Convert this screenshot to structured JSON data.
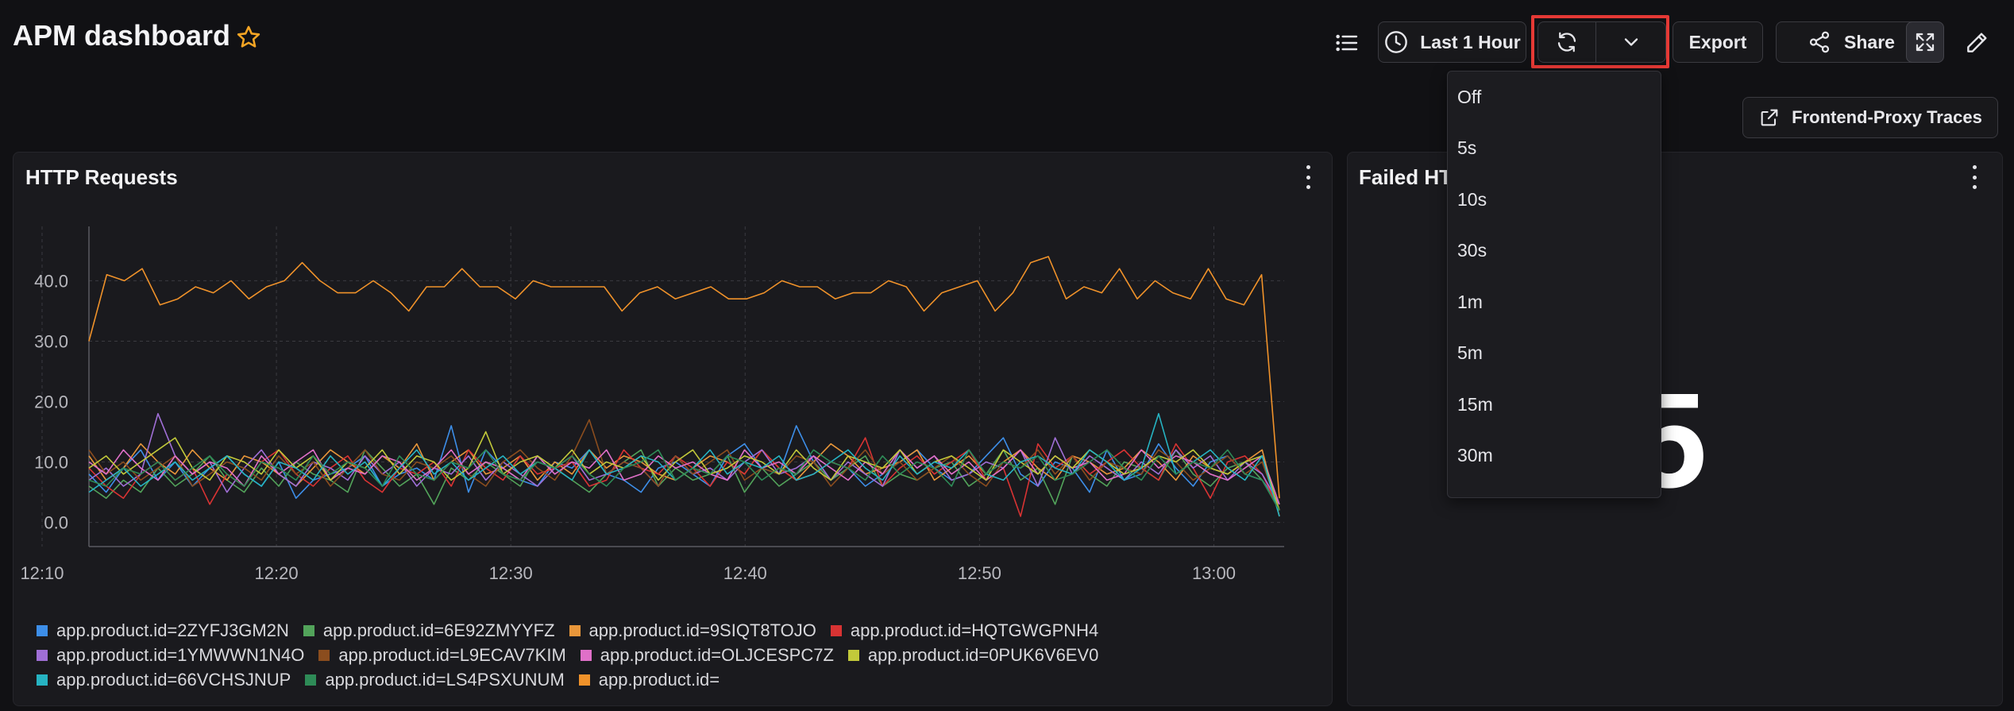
{
  "header": {
    "title": "APM dashboard",
    "time_range_label": "Last 1 Hour",
    "export_label": "Export",
    "share_label": "Share",
    "external_link_label": "Frontend-Proxy Traces"
  },
  "refresh_menu": {
    "options": [
      "Off",
      "5s",
      "10s",
      "30s",
      "1m",
      "5m",
      "15m",
      "30m"
    ]
  },
  "panels": {
    "http_requests": {
      "title": "HTTP Requests"
    },
    "failed": {
      "title_visible": "Failed HT",
      "value_fragment": "5"
    }
  },
  "colors": {
    "background": "#111114",
    "panel": "#1a1a1e",
    "highlight_box": "#e53935",
    "star": "#f5a524"
  },
  "icons": [
    "list-icon",
    "clock-icon",
    "refresh-icon",
    "chevron-down-icon",
    "share-icon",
    "fullscreen-icon",
    "edit-icon",
    "external-link-icon",
    "star-icon",
    "kebab-menu-icon"
  ],
  "chart_data": {
    "type": "line",
    "title": "",
    "x_ticks": [
      "12:10",
      "12:20",
      "12:30",
      "12:40",
      "12:50",
      "13:00"
    ],
    "x_range_minutes": [
      12.0,
      63.0
    ],
    "y_ticks": [
      "0.0",
      "10.0",
      "20.0",
      "30.0",
      "40.0"
    ],
    "ylim": [
      -4,
      49
    ],
    "grid": true,
    "legend_position": "bottom",
    "series": [
      {
        "name": "app.product.id=2ZYFJ3GM2N",
        "color": "#3d8ee8",
        "values": [
          8,
          5,
          9,
          12,
          7,
          10,
          6,
          9,
          11,
          8,
          6,
          10,
          4,
          7,
          8,
          9,
          11,
          6,
          8,
          9,
          7,
          16,
          5,
          12,
          9,
          7,
          6,
          10,
          9,
          12,
          8,
          7,
          5,
          9,
          10,
          8,
          6,
          11,
          13,
          9,
          8,
          16,
          10,
          7,
          9,
          6,
          8,
          10,
          12,
          9,
          7,
          8,
          11,
          14,
          8,
          6,
          10,
          9,
          5,
          12,
          7,
          8,
          13,
          9,
          6,
          10,
          11,
          8,
          7,
          3
        ]
      },
      {
        "name": "app.product.id=6E92ZMYYFZ",
        "color": "#52a35a",
        "values": [
          6,
          4,
          7,
          5,
          9,
          6,
          8,
          11,
          7,
          5,
          9,
          6,
          10,
          8,
          7,
          5,
          12,
          9,
          6,
          8,
          3,
          9,
          7,
          10,
          8,
          6,
          11,
          9,
          7,
          5,
          8,
          10,
          12,
          6,
          9,
          7,
          8,
          11,
          5,
          9,
          6,
          8,
          10,
          7,
          9,
          11,
          6,
          8,
          7,
          9,
          10,
          6,
          8,
          12,
          7,
          9,
          3,
          11,
          8,
          6,
          10,
          9,
          7,
          12,
          8,
          6,
          9,
          10,
          7,
          2
        ]
      },
      {
        "name": "app.product.id=9SIQT8TOJO",
        "color": "#e8963a",
        "values": [
          11,
          7,
          9,
          13,
          10,
          8,
          12,
          9,
          7,
          11,
          10,
          8,
          6,
          9,
          12,
          10,
          8,
          11,
          9,
          13,
          7,
          10,
          12,
          8,
          9,
          11,
          7,
          10,
          8,
          12,
          9,
          11,
          10,
          8,
          7,
          9,
          11,
          10,
          8,
          12,
          9,
          7,
          10,
          13,
          11,
          8,
          9,
          10,
          12,
          7,
          9,
          11,
          8,
          10,
          12,
          9,
          7,
          11,
          10,
          8,
          9,
          12,
          10,
          7,
          11,
          9,
          8,
          10,
          12,
          1
        ]
      },
      {
        "name": "app.product.id=HQTGWGPNH4",
        "color": "#d83333",
        "values": [
          9,
          6,
          4,
          8,
          10,
          7,
          9,
          3,
          8,
          6,
          10,
          12,
          8,
          6,
          9,
          11,
          7,
          5,
          9,
          8,
          10,
          6,
          12,
          9,
          7,
          11,
          8,
          9,
          10,
          6,
          7,
          12,
          9,
          8,
          11,
          9,
          6,
          10,
          8,
          12,
          9,
          7,
          8,
          10,
          9,
          14,
          6,
          9,
          11,
          8,
          10,
          12,
          7,
          9,
          1,
          13,
          9,
          11,
          8,
          10,
          12,
          9,
          7,
          13,
          9,
          4,
          10,
          11,
          8,
          2
        ]
      },
      {
        "name": "app.product.id=1YMWWN1N4O",
        "color": "#a06fd6",
        "values": [
          7,
          9,
          6,
          8,
          18,
          11,
          8,
          10,
          5,
          9,
          12,
          8,
          6,
          10,
          9,
          7,
          11,
          8,
          10,
          6,
          9,
          8,
          11,
          7,
          10,
          8,
          6,
          9,
          11,
          7,
          8,
          10,
          9,
          6,
          11,
          8,
          9,
          7,
          10,
          12,
          8,
          9,
          11,
          7,
          10,
          8,
          6,
          12,
          9,
          11,
          7,
          8,
          10,
          9,
          12,
          6,
          14,
          8,
          11,
          9,
          7,
          10,
          8,
          12,
          9,
          11,
          7,
          10,
          8,
          3
        ]
      },
      {
        "name": "app.product.id=L9ECAV7KIM",
        "color": "#8b4d1e",
        "values": [
          12,
          8,
          10,
          7,
          9,
          11,
          6,
          8,
          10,
          9,
          7,
          11,
          8,
          10,
          6,
          9,
          12,
          8,
          7,
          10,
          9,
          11,
          8,
          6,
          10,
          12,
          9,
          7,
          11,
          17,
          8,
          10,
          9,
          6,
          11,
          8,
          10,
          12,
          7,
          9,
          8,
          11,
          10,
          6,
          9,
          12,
          8,
          10,
          7,
          9,
          11,
          8,
          6,
          10,
          9,
          12,
          8,
          11,
          7,
          10,
          9,
          8,
          12,
          10,
          7,
          9,
          11,
          8,
          10,
          2
        ]
      },
      {
        "name": "app.product.id=OLJCESPC7Z",
        "color": "#e070c8",
        "values": [
          10,
          8,
          12,
          9,
          7,
          11,
          8,
          10,
          9,
          6,
          11,
          8,
          10,
          12,
          7,
          9,
          8,
          11,
          10,
          7,
          9,
          12,
          8,
          10,
          9,
          7,
          11,
          8,
          10,
          9,
          12,
          7,
          8,
          11,
          9,
          10,
          8,
          7,
          12,
          9,
          10,
          8,
          11,
          9,
          7,
          10,
          8,
          12,
          9,
          11,
          8,
          10,
          7,
          9,
          12,
          8,
          11,
          9,
          10,
          7,
          8,
          12,
          9,
          11,
          10,
          8,
          7,
          9,
          11,
          3
        ]
      },
      {
        "name": "app.product.id=0PUK6V6EV0",
        "color": "#c2c93a",
        "values": [
          9,
          11,
          8,
          10,
          12,
          14,
          9,
          7,
          11,
          10,
          8,
          12,
          9,
          11,
          7,
          10,
          9,
          12,
          8,
          11,
          10,
          7,
          9,
          15,
          8,
          10,
          11,
          9,
          12,
          8,
          10,
          9,
          11,
          7,
          10,
          12,
          8,
          9,
          11,
          10,
          8,
          12,
          9,
          7,
          11,
          10,
          9,
          12,
          8,
          10,
          11,
          9,
          7,
          12,
          10,
          8,
          11,
          9,
          12,
          10,
          8,
          9,
          11,
          10,
          12,
          9,
          8,
          10,
          11,
          2
        ]
      },
      {
        "name": "app.product.id=66VCHSJNUP",
        "color": "#26b3c2",
        "values": [
          5,
          7,
          9,
          6,
          8,
          10,
          7,
          9,
          11,
          8,
          6,
          10,
          9,
          7,
          11,
          8,
          10,
          6,
          9,
          12,
          8,
          10,
          7,
          9,
          11,
          8,
          10,
          9,
          7,
          12,
          8,
          9,
          11,
          10,
          7,
          9,
          12,
          8,
          10,
          9,
          11,
          7,
          8,
          10,
          12,
          9,
          7,
          11,
          8,
          10,
          9,
          12,
          8,
          7,
          10,
          11,
          9,
          8,
          12,
          10,
          7,
          9,
          18,
          8,
          10,
          12,
          9,
          7,
          11,
          1
        ]
      },
      {
        "name": "app.product.id=LS4PSXUNUM",
        "color": "#2e8b57",
        "values": [
          7,
          6,
          9,
          8,
          10,
          7,
          9,
          11,
          8,
          6,
          10,
          9,
          7,
          11,
          8,
          10,
          9,
          6,
          11,
          8,
          7,
          10,
          9,
          12,
          8,
          7,
          10,
          9,
          11,
          8,
          6,
          9,
          10,
          12,
          7,
          9,
          8,
          11,
          10,
          7,
          9,
          8,
          12,
          10,
          9,
          7,
          11,
          8,
          10,
          9,
          6,
          12,
          8,
          10,
          9,
          11,
          7,
          8,
          10,
          12,
          9,
          7,
          11,
          8,
          10,
          9,
          12,
          8,
          7,
          2
        ]
      },
      {
        "name": "app.product.id=",
        "color": "#f0922a",
        "values": [
          30,
          41,
          40,
          42,
          36,
          37,
          39,
          38,
          40,
          37,
          39,
          40,
          43,
          40,
          38,
          38,
          40,
          38,
          35,
          39,
          39,
          42,
          39,
          39,
          37,
          40,
          39,
          39,
          39,
          39,
          35,
          38,
          39,
          37,
          38,
          39,
          37,
          37,
          38,
          40,
          39,
          39,
          37,
          38,
          38,
          40,
          39,
          35,
          38,
          39,
          40,
          35,
          38,
          43,
          44,
          37,
          39,
          38,
          42,
          37,
          40,
          38,
          37,
          42,
          37,
          36,
          41,
          4
        ]
      }
    ]
  }
}
